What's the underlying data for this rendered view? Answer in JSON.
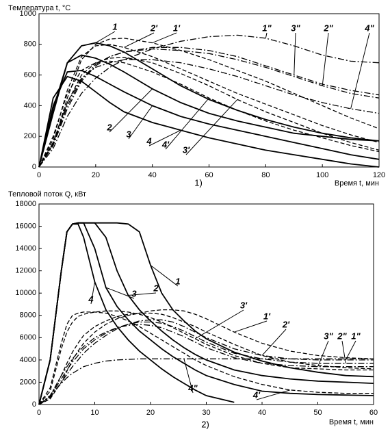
{
  "chart_data": [
    {
      "type": "line",
      "title": "Температура t, °C",
      "x_label": "Время t, мин",
      "caption": "1)",
      "x": [
        0,
        5,
        10,
        15,
        20,
        25,
        30,
        40,
        50,
        60,
        70,
        80,
        90,
        100,
        110,
        120
      ],
      "xlim": [
        0,
        120
      ],
      "xticks": [
        0,
        20,
        40,
        60,
        80,
        100,
        120
      ],
      "ylim": [
        0,
        1000
      ],
      "yticks": [
        0,
        200,
        400,
        600,
        800,
        1000
      ],
      "series": [
        {
          "name": "1",
          "color": "#000",
          "style": "solid",
          "values": [
            0,
            350,
            680,
            790,
            810,
            790,
            750,
            640,
            530,
            440,
            370,
            310,
            260,
            220,
            190,
            170
          ]
        },
        {
          "name": "2",
          "color": "#000",
          "style": "solid",
          "values": [
            0,
            380,
            680,
            730,
            710,
            670,
            620,
            510,
            420,
            350,
            300,
            260,
            220,
            200,
            180,
            170
          ]
        },
        {
          "name": "3",
          "color": "#000",
          "style": "solid",
          "values": [
            0,
            400,
            620,
            630,
            590,
            540,
            490,
            400,
            330,
            280,
            240,
            200,
            160,
            120,
            80,
            50
          ]
        },
        {
          "name": "4",
          "color": "#000",
          "style": "solid",
          "values": [
            0,
            450,
            590,
            560,
            490,
            420,
            360,
            290,
            240,
            190,
            150,
            110,
            80,
            50,
            20,
            0
          ]
        },
        {
          "name": "1'",
          "color": "#000",
          "style": "dashed",
          "values": [
            0,
            150,
            450,
            700,
            800,
            835,
            840,
            810,
            760,
            700,
            630,
            560,
            480,
            400,
            320,
            250
          ]
        },
        {
          "name": "2'",
          "color": "#000",
          "style": "dashed",
          "values": [
            0,
            180,
            500,
            720,
            790,
            800,
            780,
            720,
            640,
            560,
            480,
            410,
            340,
            270,
            210,
            160
          ]
        },
        {
          "name": "3'",
          "color": "#000",
          "style": "dashed",
          "values": [
            0,
            160,
            420,
            600,
            680,
            710,
            715,
            680,
            610,
            530,
            440,
            360,
            290,
            220,
            160,
            110
          ]
        },
        {
          "name": "4'",
          "color": "#000",
          "style": "dashed",
          "values": [
            0,
            200,
            480,
            630,
            680,
            690,
            680,
            620,
            540,
            450,
            370,
            300,
            240,
            190,
            140,
            100
          ]
        },
        {
          "name": "1\"",
          "color": "#000",
          "style": "dashdot",
          "values": [
            0,
            120,
            330,
            480,
            580,
            650,
            700,
            770,
            820,
            850,
            860,
            840,
            790,
            730,
            690,
            680
          ]
        },
        {
          "name": "2\"",
          "color": "#000",
          "style": "dashdot",
          "values": [
            0,
            150,
            400,
            570,
            670,
            720,
            750,
            770,
            760,
            740,
            700,
            650,
            590,
            530,
            480,
            450
          ]
        },
        {
          "name": "3\"",
          "color": "#000",
          "style": "dashdot",
          "values": [
            0,
            140,
            380,
            560,
            660,
            720,
            750,
            780,
            780,
            760,
            720,
            660,
            600,
            540,
            500,
            470
          ]
        },
        {
          "name": "4\"",
          "color": "#000",
          "style": "dashdot",
          "values": [
            0,
            160,
            420,
            580,
            650,
            680,
            700,
            700,
            680,
            640,
            590,
            530,
            470,
            420,
            380,
            350
          ]
        }
      ]
    },
    {
      "type": "line",
      "title": "Тепловой поток Q, кВт",
      "x_label": "Время t, мин",
      "caption": "2)",
      "x": [
        0,
        2,
        4,
        5,
        6,
        7,
        8,
        10,
        12,
        14,
        16,
        18,
        20,
        22,
        24,
        26,
        28,
        30,
        35,
        40,
        45,
        50,
        55,
        60
      ],
      "xlim": [
        0,
        60
      ],
      "xticks": [
        0,
        10,
        20,
        30,
        40,
        50,
        60
      ],
      "ylim": [
        0,
        18000
      ],
      "yticks": [
        0,
        2000,
        4000,
        6000,
        8000,
        10000,
        12000,
        14000,
        16000,
        18000
      ],
      "series": [
        {
          "name": "1",
          "color": "#000",
          "style": "solid",
          "values": [
            0,
            4000,
            12000,
            15500,
            16200,
            16300,
            16300,
            16300,
            16300,
            16300,
            16200,
            15500,
            12500,
            10000,
            8500,
            7500,
            6600,
            5900,
            4700,
            3900,
            3300,
            2900,
            2600,
            2500
          ]
        },
        {
          "name": "2",
          "color": "#000",
          "style": "solid",
          "values": [
            0,
            4000,
            12000,
            15500,
            16200,
            16300,
            16300,
            16300,
            15000,
            12000,
            9800,
            8500,
            7500,
            6600,
            5800,
            5100,
            4500,
            4000,
            3100,
            2600,
            2300,
            2100,
            2000,
            1900
          ]
        },
        {
          "name": "3",
          "color": "#000",
          "style": "solid",
          "values": [
            0,
            4000,
            12000,
            15500,
            16200,
            16300,
            16300,
            14000,
            10500,
            8800,
            7600,
            6600,
            5800,
            5000,
            4300,
            3700,
            3100,
            2600,
            1800,
            1200,
            1000,
            900,
            850,
            800
          ]
        },
        {
          "name": "4",
          "color": "#000",
          "style": "solid",
          "values": [
            0,
            4000,
            12000,
            15500,
            16200,
            16200,
            15000,
            11000,
            8500,
            7000,
            5800,
            4800,
            4000,
            3200,
            2500,
            1900,
            1300,
            800,
            200,
            null,
            null,
            null,
            null,
            null
          ]
        },
        {
          "name": "1'",
          "color": "#000",
          "style": "dashed",
          "values": [
            0,
            500,
            2000,
            3000,
            4000,
            4800,
            5500,
            6500,
            7200,
            7700,
            8000,
            8200,
            8400,
            8500,
            8500,
            8400,
            8100,
            7700,
            6500,
            5500,
            4800,
            4400,
            4200,
            4100
          ]
        },
        {
          "name": "2'",
          "color": "#000",
          "style": "dashed",
          "values": [
            0,
            700,
            2600,
            3700,
            4700,
            5500,
            6200,
            7000,
            7500,
            7900,
            8100,
            8200,
            8200,
            8100,
            7800,
            7400,
            7000,
            6500,
            5400,
            4400,
            3800,
            3500,
            3300,
            3200
          ]
        },
        {
          "name": "3'",
          "color": "#000",
          "style": "dashed",
          "values": [
            0,
            1200,
            5000,
            6500,
            7400,
            7900,
            8100,
            8300,
            8400,
            8400,
            8300,
            8100,
            7800,
            7400,
            6900,
            6400,
            5900,
            5400,
            4400,
            3700,
            3300,
            3200,
            3100,
            3100
          ]
        },
        {
          "name": "4'",
          "color": "#000",
          "style": "dashed",
          "values": [
            0,
            1500,
            5500,
            7200,
            8000,
            8200,
            8300,
            8300,
            8200,
            7900,
            7500,
            7000,
            6400,
            5800,
            5200,
            4600,
            4000,
            3500,
            2500,
            1800,
            1300,
            1100,
            1000,
            1000
          ]
        },
        {
          "name": "1\"",
          "color": "#000",
          "style": "dashdot",
          "values": [
            0,
            600,
            2000,
            2700,
            3400,
            4000,
            4600,
            5500,
            6200,
            6800,
            7200,
            7500,
            7600,
            7600,
            7400,
            7000,
            6500,
            6000,
            5000,
            4400,
            4100,
            4000,
            4000,
            4000
          ]
        },
        {
          "name": "2\"",
          "color": "#000",
          "style": "dashdot",
          "values": [
            0,
            700,
            2300,
            3100,
            3800,
            4400,
            5000,
            5800,
            6400,
            6900,
            7200,
            7400,
            7400,
            7300,
            7000,
            6600,
            6100,
            5600,
            4600,
            4100,
            3800,
            3700,
            3700,
            3700
          ]
        },
        {
          "name": "3\"",
          "color": "#000",
          "style": "dashdot",
          "values": [
            0,
            800,
            2600,
            3400,
            4100,
            4700,
            5200,
            6000,
            6500,
            6900,
            7100,
            7200,
            7100,
            6900,
            6500,
            6100,
            5600,
            5100,
            4200,
            3700,
            3500,
            3400,
            3400,
            3400
          ]
        },
        {
          "name": "4\"",
          "color": "#000",
          "style": "dashdot",
          "values": [
            0,
            800,
            1900,
            2400,
            2800,
            3100,
            3400,
            3700,
            3900,
            4000,
            4050,
            4100,
            4100,
            4100,
            4100,
            4100,
            4100,
            4100,
            4100,
            4100,
            4100,
            4100,
            4100,
            4100
          ]
        }
      ]
    }
  ]
}
